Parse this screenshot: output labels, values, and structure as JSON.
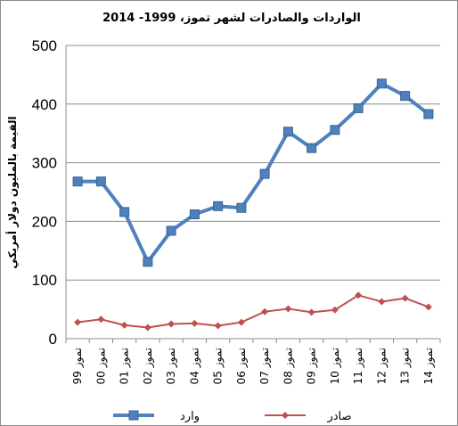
{
  "chart_data": {
    "type": "line",
    "title": "الواردات والصادرات لشهر تموز،  1999- 2014",
    "ylabel": "القيمة بالمليون دولار أمريكي",
    "xlabel": "",
    "ylim": [
      0,
      500
    ],
    "yticks": [
      0,
      100,
      200,
      300,
      400,
      500
    ],
    "grid": true,
    "legend_position": "bottom",
    "categories": [
      "تموز 99",
      "تموز 00",
      "تموز 01",
      "تموز 02",
      "تموز 03",
      "تموز 04",
      "تموز 05",
      "تموز 06",
      "تموز 07",
      "تموز 08",
      "تموز 09",
      "تموز 10",
      "تموز 11",
      "تموز 12",
      "تموز 13",
      "تموز 14"
    ],
    "series": [
      {
        "name": "وارد",
        "color": "#4f81bd",
        "marker": "square",
        "values": [
          268,
          268,
          216,
          131,
          184,
          212,
          226,
          223,
          281,
          353,
          325,
          356,
          393,
          435,
          414,
          383
        ]
      },
      {
        "name": "صادر",
        "color": "#c0504d",
        "marker": "diamond",
        "values": [
          28,
          33,
          23,
          19,
          25,
          26,
          22,
          28,
          46,
          51,
          45,
          49,
          74,
          63,
          69,
          54
        ]
      }
    ]
  }
}
